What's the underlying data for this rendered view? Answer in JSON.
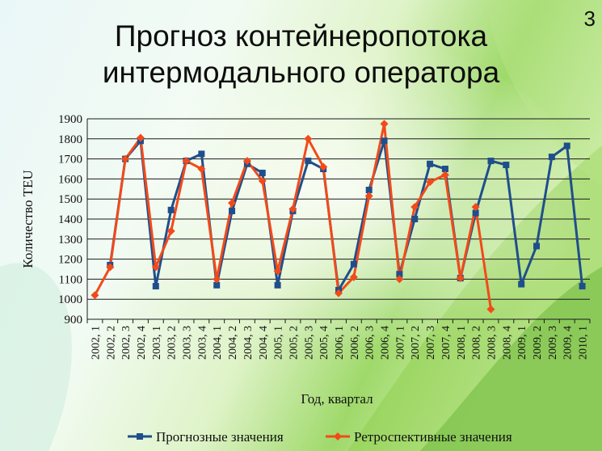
{
  "slide": {
    "page_number": "3",
    "title_line1": "Прогноз контейнеропотока",
    "title_line2": "интермодального оператора"
  },
  "colors": {
    "forecast": "#1F4E8C",
    "retro": "#F24A1A",
    "grid": "#1a1a1a"
  },
  "chart_data": {
    "type": "line",
    "xlabel": "Год, квартал",
    "ylabel": "Количество TEU",
    "ylim": [
      900,
      1900
    ],
    "yticks": [
      900,
      1000,
      1100,
      1200,
      1300,
      1400,
      1500,
      1600,
      1700,
      1800,
      1900
    ],
    "grid": true,
    "legend": "bottom",
    "categories": [
      "2002, 1",
      "2002, 2",
      "2002, 3",
      "2002, 4",
      "2003, 1",
      "2003, 2",
      "2003, 3",
      "2003, 4",
      "2004, 1",
      "2004, 2",
      "2004, 3",
      "2004, 4",
      "2005, 1",
      "2005, 2",
      "2005, 3",
      "2005, 4",
      "2006, 1",
      "2006, 2",
      "2006, 3",
      "2006, 4",
      "2007, 1",
      "2007, 2",
      "2007, 3",
      "2007, 4",
      "2008, 1",
      "2008, 2",
      "2008, 3",
      "2008, 4",
      "2009, 1",
      "2009, 2",
      "2009, 3",
      "2009, 4",
      "2010, 1"
    ],
    "series": [
      {
        "name": "Прогнозные значения",
        "marker": "square",
        "values": [
          null,
          1170,
          1700,
          1790,
          1065,
          1445,
          1690,
          1725,
          1070,
          1440,
          1675,
          1630,
          1070,
          1440,
          1690,
          1650,
          1045,
          1175,
          1545,
          1790,
          1125,
          1400,
          1675,
          1650,
          1105,
          1430,
          1690,
          1670,
          1075,
          1265,
          1710,
          1765,
          1065
        ]
      },
      {
        "name": "Ретроспективные значения",
        "marker": "diamond",
        "values": [
          1020,
          1160,
          1700,
          1805,
          1160,
          1340,
          1690,
          1650,
          1100,
          1480,
          1690,
          1590,
          1140,
          1450,
          1800,
          1660,
          1030,
          1110,
          1515,
          1875,
          1100,
          1460,
          1585,
          1620,
          1105,
          1460,
          950,
          null,
          null,
          null,
          null,
          null,
          null
        ]
      }
    ]
  }
}
